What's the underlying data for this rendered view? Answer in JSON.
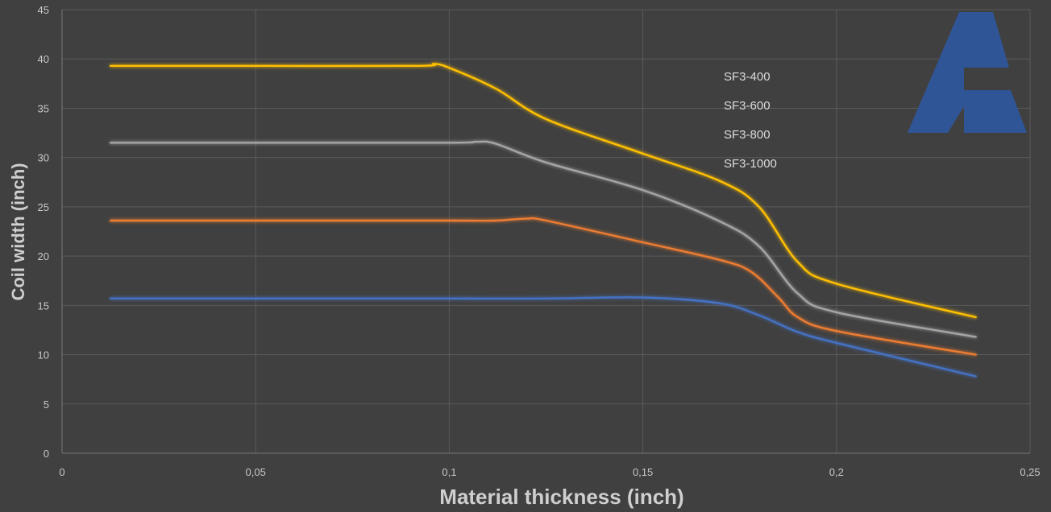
{
  "chart_data": {
    "type": "line",
    "xlabel": "Material thickness (inch)",
    "ylabel": "Coil width (inch)",
    "xlim": [
      0,
      0.25
    ],
    "ylim": [
      0,
      45
    ],
    "x_ticks": [
      "0",
      "0,05",
      "0,1",
      "0,15",
      "0,2",
      "0,25"
    ],
    "x_tick_values": [
      0,
      0.05,
      0.1,
      0.15,
      0.2,
      0.25
    ],
    "y_ticks": [
      "0",
      "5",
      "10",
      "15",
      "20",
      "25",
      "30",
      "35",
      "40",
      "45"
    ],
    "y_tick_values": [
      0,
      5,
      10,
      15,
      20,
      25,
      30,
      35,
      40,
      45
    ],
    "grid": true,
    "legend_position": "top-right",
    "series": [
      {
        "name": "SF3-400",
        "color": "#4472c4",
        "x": [
          0.0125,
          0.05,
          0.1,
          0.125,
          0.15,
          0.17,
          0.18,
          0.19,
          0.2,
          0.236
        ],
        "y": [
          15.7,
          15.7,
          15.7,
          15.7,
          15.8,
          15.2,
          14.0,
          12.3,
          11.2,
          7.8
        ]
      },
      {
        "name": "SF3-600",
        "color": "#ed7d31",
        "x": [
          0.0125,
          0.05,
          0.1,
          0.112,
          0.12,
          0.125,
          0.15,
          0.17,
          0.178,
          0.185,
          0.19,
          0.2,
          0.236
        ],
        "y": [
          23.6,
          23.6,
          23.6,
          23.6,
          23.8,
          23.6,
          21.4,
          19.6,
          18.4,
          15.8,
          13.8,
          12.4,
          10.0
        ]
      },
      {
        "name": "SF3-800",
        "color": "#a5a5a5",
        "x": [
          0.0125,
          0.05,
          0.1,
          0.107,
          0.112,
          0.125,
          0.15,
          0.17,
          0.18,
          0.19,
          0.2,
          0.236
        ],
        "y": [
          31.5,
          31.5,
          31.5,
          31.6,
          31.4,
          29.5,
          26.7,
          23.5,
          21.0,
          16.2,
          14.3,
          11.8
        ]
      },
      {
        "name": "SF3-1000",
        "color": "#ffc000",
        "x": [
          0.0125,
          0.05,
          0.092,
          0.096,
          0.1,
          0.112,
          0.125,
          0.15,
          0.17,
          0.18,
          0.19,
          0.2,
          0.236
        ],
        "y": [
          39.3,
          39.3,
          39.3,
          39.5,
          39.1,
          37.0,
          33.9,
          30.4,
          27.6,
          25.0,
          19.4,
          17.2,
          13.8
        ]
      }
    ]
  },
  "logo": {
    "color": "#2f5597"
  }
}
